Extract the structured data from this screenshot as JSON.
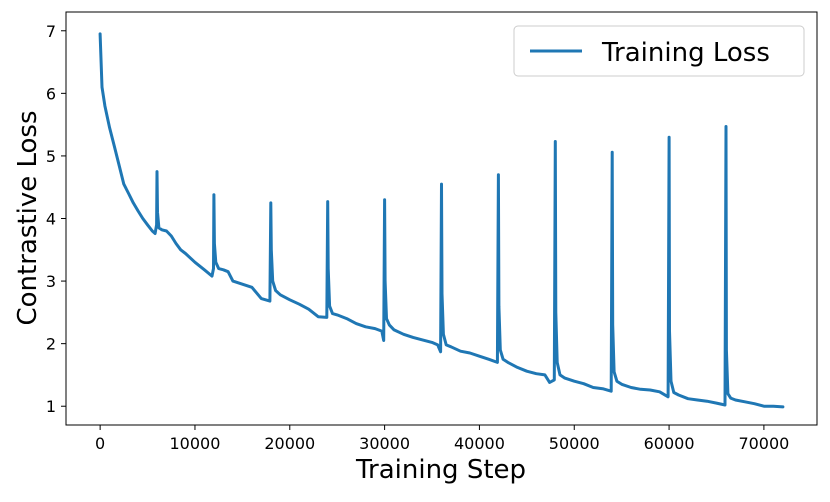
{
  "chart_data": {
    "type": "line",
    "title": "",
    "xlabel": "Training Step",
    "ylabel": "Contrastive Loss",
    "xlim": [
      -3600,
      75600
    ],
    "ylim": [
      0.7,
      7.3
    ],
    "xticks": [
      0,
      10000,
      20000,
      30000,
      40000,
      50000,
      60000,
      70000
    ],
    "xtick_labels": [
      "0",
      "10000",
      "20000",
      "30000",
      "40000",
      "50000",
      "60000",
      "70000"
    ],
    "yticks": [
      1,
      2,
      3,
      4,
      5,
      6,
      7
    ],
    "ytick_labels": [
      "1",
      "2",
      "3",
      "4",
      "5",
      "6",
      "7"
    ],
    "grid": false,
    "legend_position": "upper-right",
    "series": [
      {
        "name": "Training Loss",
        "color": "#1f77b4",
        "x": [
          0,
          200,
          500,
          1000,
          1500,
          2000,
          2500,
          3000,
          3500,
          4000,
          4500,
          5000,
          5500,
          5800,
          5950,
          6000,
          6050,
          6200,
          6500,
          7000,
          7500,
          8000,
          8500,
          9000,
          10000,
          11000,
          11800,
          11950,
          12000,
          12050,
          12200,
          12500,
          13000,
          13500,
          14000,
          15000,
          16000,
          17000,
          17900,
          18000,
          18050,
          18200,
          18500,
          19000,
          20000,
          21000,
          22000,
          23000,
          23900,
          24000,
          24050,
          24200,
          24500,
          25000,
          26000,
          27000,
          28000,
          29000,
          29700,
          29900,
          30000,
          30050,
          30200,
          30500,
          31000,
          32000,
          33000,
          34000,
          35000,
          35600,
          35900,
          36000,
          36050,
          36200,
          36500,
          37000,
          38000,
          39000,
          40000,
          41000,
          41900,
          42000,
          42050,
          42200,
          42500,
          43000,
          44000,
          45000,
          46000,
          46900,
          47400,
          47900,
          48000,
          48050,
          48200,
          48500,
          49000,
          50000,
          51000,
          52000,
          53000,
          53900,
          54000,
          54050,
          54200,
          54500,
          55000,
          56000,
          57000,
          58000,
          59000,
          59900,
          60000,
          60050,
          60200,
          60500,
          61000,
          62000,
          63000,
          64000,
          65000,
          65900,
          66000,
          66050,
          66200,
          66500,
          67000,
          68000,
          69000,
          70000,
          71000,
          72000
        ],
        "y": [
          6.95,
          6.1,
          5.8,
          5.45,
          5.15,
          4.85,
          4.55,
          4.4,
          4.25,
          4.12,
          4.0,
          3.9,
          3.8,
          3.76,
          3.9,
          4.75,
          4.1,
          3.85,
          3.82,
          3.8,
          3.72,
          3.6,
          3.5,
          3.44,
          3.3,
          3.18,
          3.08,
          3.2,
          4.38,
          3.6,
          3.3,
          3.2,
          3.18,
          3.15,
          3.0,
          2.95,
          2.9,
          2.72,
          2.68,
          4.25,
          3.5,
          3.0,
          2.85,
          2.78,
          2.7,
          2.63,
          2.55,
          2.43,
          2.42,
          4.27,
          3.2,
          2.6,
          2.48,
          2.46,
          2.4,
          2.32,
          2.27,
          2.24,
          2.2,
          2.05,
          4.3,
          3.0,
          2.4,
          2.3,
          2.22,
          2.15,
          2.1,
          2.06,
          2.02,
          1.98,
          1.87,
          4.55,
          2.8,
          2.15,
          1.98,
          1.95,
          1.88,
          1.85,
          1.8,
          1.75,
          1.7,
          4.7,
          2.6,
          1.9,
          1.75,
          1.7,
          1.62,
          1.56,
          1.52,
          1.5,
          1.38,
          1.42,
          5.23,
          2.5,
          1.7,
          1.5,
          1.45,
          1.4,
          1.36,
          1.3,
          1.28,
          1.24,
          5.06,
          2.3,
          1.55,
          1.4,
          1.35,
          1.3,
          1.27,
          1.26,
          1.23,
          1.15,
          5.3,
          2.2,
          1.4,
          1.22,
          1.18,
          1.12,
          1.1,
          1.08,
          1.05,
          1.02,
          5.47,
          1.9,
          1.2,
          1.13,
          1.1,
          1.07,
          1.04,
          1.0,
          1.0,
          0.99
        ]
      }
    ]
  }
}
